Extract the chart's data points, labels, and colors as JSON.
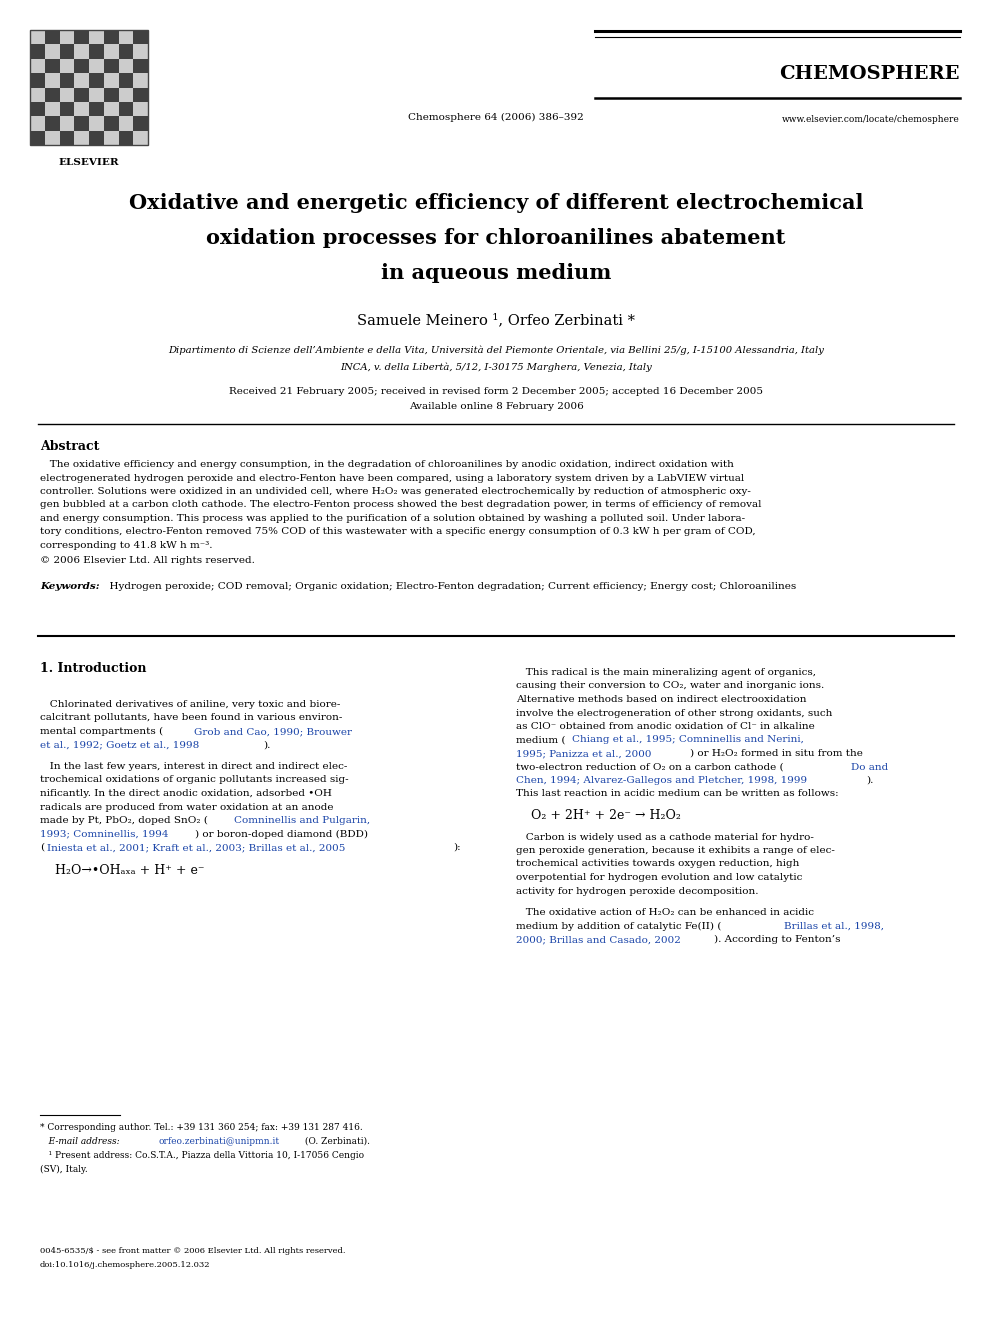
{
  "bg_color": "#ffffff",
  "page_width": 9.92,
  "page_height": 13.23,
  "journal_name": "CHEMOSPHERE",
  "journal_cite": "Chemosphere 64 (2006) 386–392",
  "journal_url": "www.elsevier.com/locate/chemosphere",
  "title_line1": "Oxidative and energetic efficiency of different electrochemical",
  "title_line2": "oxidation processes for chloroanilines abatement",
  "title_line3": "in aqueous medium",
  "authors": "Samuele Meinero ¹, Orfeo Zerbinati *",
  "affil1": "Dipartimento di Scienze dell’Ambiente e della Vita, Università del Piemonte Orientale, via Bellini 25/g, I-15100 Alessandria, Italy",
  "affil2": "INCA, v. della Libertà, 5/12, I-30175 Marghera, Venezia, Italy",
  "received": "Received 21 February 2005; received in revised form 2 December 2005; accepted 16 December 2005",
  "available": "Available online 8 February 2006",
  "abstract_title": "Abstract",
  "copyright": "© 2006 Elsevier Ltd. All rights reserved.",
  "keywords_label": "Keywords:",
  "keywords_text": "  Hydrogen peroxide; COD removal; Organic oxidation; Electro-Fenton degradation; Current efficiency; Energy cost; Chloroanilines",
  "section1_title": "1. Introduction",
  "footnote_star": "* Corresponding author. Tel.: +39 131 360 254; fax: +39 131 287 416.",
  "footnote_email_pre": "   E-mail address: ",
  "footnote_email_link": "orfeo.zerbinati@unipmn.it",
  "footnote_email_post": " (O. Zerbinati).",
  "footnote_1": "   ¹ Present address: Co.S.T.A., Piazza della Vittoria 10, I-17056 Cengio\n(SV), Italy.",
  "issn_line1": "0045-6535/$ - see front matter © 2006 Elsevier Ltd. All rights reserved.",
  "issn_line2": "doi:10.1016/j.chemosphere.2005.12.032",
  "blue_color": "#1a44a8",
  "link_color": "#1a44a8",
  "black": "#000000"
}
